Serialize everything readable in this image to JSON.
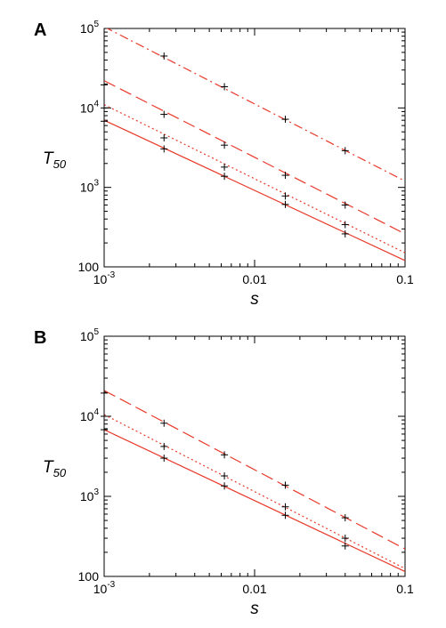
{
  "chart_data": [
    {
      "panel": "A",
      "type": "line",
      "x_scale": "log",
      "y_scale": "log",
      "xlim": [
        0.001,
        0.1
      ],
      "ylim": [
        100,
        100000
      ],
      "x_ticks": [
        {
          "value": 0.001,
          "base": "10",
          "exp": "-3"
        },
        {
          "value": 0.01,
          "base": "0.01",
          "exp": ""
        },
        {
          "value": 0.1,
          "base": "0.1",
          "exp": ""
        }
      ],
      "y_ticks": [
        {
          "value": 100,
          "base": "100",
          "exp": ""
        },
        {
          "value": 1000,
          "base": "10",
          "exp": "3"
        },
        {
          "value": 10000,
          "base": "10",
          "exp": "4"
        },
        {
          "value": 100000,
          "base": "10",
          "exp": "5"
        }
      ],
      "xlabel": "s",
      "ylabel": "T",
      "ylabel_sub": "50",
      "grid": false,
      "series_color": "#e8392a",
      "point_color": "#000000",
      "series": [
        {
          "style": "solid",
          "line": [
            [
              0.001,
              7000
            ],
            [
              0.1,
              120
            ]
          ],
          "points": [
            [
              0.001,
              6800
            ],
            [
              0.0025,
              3050
            ],
            [
              0.0063,
              1380
            ],
            [
              0.016,
              610
            ],
            [
              0.04,
              260
            ]
          ]
        },
        {
          "style": "dotted",
          "line": [
            [
              0.001,
              11000
            ],
            [
              0.1,
              150
            ]
          ],
          "points": [
            [
              0.001,
              10000
            ],
            [
              0.0025,
              4200
            ],
            [
              0.0063,
              1800
            ],
            [
              0.016,
              780
            ],
            [
              0.04,
              340
            ]
          ]
        },
        {
          "style": "dashed",
          "line": [
            [
              0.001,
              22000
            ],
            [
              0.1,
              260
            ]
          ],
          "points": [
            [
              0.001,
              19500
            ],
            [
              0.0025,
              8300
            ],
            [
              0.0063,
              3400
            ],
            [
              0.016,
              1420
            ],
            [
              0.04,
              600
            ]
          ]
        },
        {
          "style": "dashdot",
          "line": [
            [
              0.001,
              105000
            ],
            [
              0.1,
              1200
            ]
          ],
          "points": [
            [
              0.0025,
              45000
            ],
            [
              0.0063,
              18500
            ],
            [
              0.016,
              7200
            ],
            [
              0.04,
              2900
            ]
          ]
        }
      ]
    },
    {
      "panel": "B",
      "type": "line",
      "x_scale": "log",
      "y_scale": "log",
      "xlim": [
        0.001,
        0.1
      ],
      "ylim": [
        100,
        100000
      ],
      "x_ticks": [
        {
          "value": 0.001,
          "base": "10",
          "exp": "-3"
        },
        {
          "value": 0.01,
          "base": "0.01",
          "exp": ""
        },
        {
          "value": 0.1,
          "base": "0.1",
          "exp": ""
        }
      ],
      "y_ticks": [
        {
          "value": 100,
          "base": "100",
          "exp": ""
        },
        {
          "value": 1000,
          "base": "10",
          "exp": "3"
        },
        {
          "value": 10000,
          "base": "10",
          "exp": "4"
        },
        {
          "value": 100000,
          "base": "10",
          "exp": "5"
        }
      ],
      "xlabel": "s",
      "ylabel": "T",
      "ylabel_sub": "50",
      "grid": false,
      "series_color": "#e8392a",
      "point_color": "#000000",
      "series": [
        {
          "style": "solid",
          "line": [
            [
              0.001,
              6800
            ],
            [
              0.1,
              115
            ]
          ],
          "points": [
            [
              0.001,
              6800
            ],
            [
              0.0025,
              3000
            ],
            [
              0.0063,
              1350
            ],
            [
              0.016,
              580
            ],
            [
              0.04,
              240
            ]
          ]
        },
        {
          "style": "dotted",
          "line": [
            [
              0.001,
              10500
            ],
            [
              0.1,
              125
            ]
          ],
          "points": [
            [
              0.001,
              10000
            ],
            [
              0.0025,
              4200
            ],
            [
              0.0063,
              1800
            ],
            [
              0.016,
              740
            ],
            [
              0.04,
              300
            ]
          ]
        },
        {
          "style": "dashed",
          "line": [
            [
              0.001,
              21000
            ],
            [
              0.1,
              220
            ]
          ],
          "points": [
            [
              0.001,
              19500
            ],
            [
              0.0025,
              8200
            ],
            [
              0.0063,
              3300
            ],
            [
              0.016,
              1380
            ],
            [
              0.04,
              540
            ]
          ]
        }
      ]
    }
  ]
}
